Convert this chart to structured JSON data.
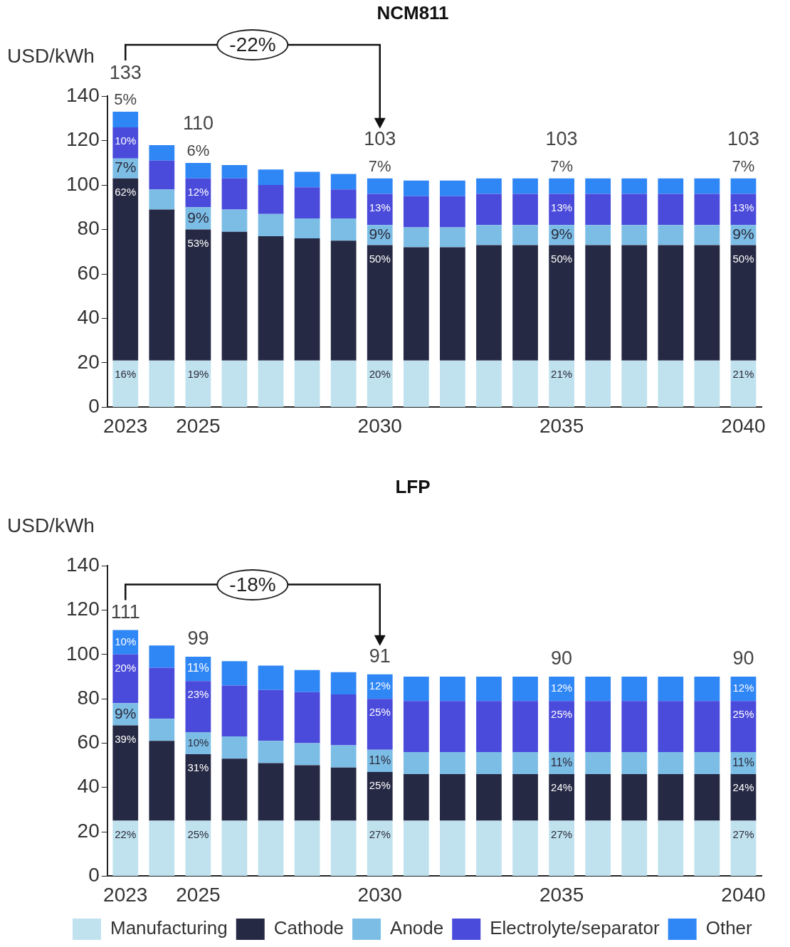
{
  "chart_data": [
    {
      "type": "bar",
      "title": "NCM811",
      "ylabel": "USD/kWh",
      "stacked": true,
      "grid": false,
      "categories": [
        "2023",
        null,
        "2025",
        null,
        null,
        null,
        null,
        "2030",
        null,
        null,
        null,
        null,
        "2035",
        null,
        null,
        null,
        null,
        "2040"
      ],
      "ylim": [
        0,
        140
      ],
      "yticks": [
        0,
        20,
        40,
        60,
        80,
        100,
        120,
        140
      ],
      "series": [
        {
          "color": "#c0e2ee",
          "values": [
            21,
            21,
            21,
            21,
            21,
            21,
            21,
            21,
            21,
            21,
            21,
            21,
            21,
            21,
            21,
            21,
            21,
            21
          ]
        },
        {
          "color": "#262944",
          "values": [
            82,
            68,
            59,
            58,
            56,
            55,
            54,
            52,
            51,
            51,
            52,
            52,
            52,
            52,
            52,
            52,
            52,
            52
          ]
        },
        {
          "color": "#7cbde6",
          "values": [
            9,
            9,
            10,
            10,
            10,
            9,
            10,
            9,
            9,
            9,
            9,
            9,
            9,
            9,
            9,
            9,
            9,
            9
          ]
        },
        {
          "color": "#4a4adb",
          "values": [
            14,
            13,
            13,
            14,
            13,
            14,
            13,
            14,
            14,
            14,
            14,
            14,
            14,
            14,
            14,
            14,
            14,
            14
          ]
        },
        {
          "color": "#2f86f5",
          "values": [
            7,
            7,
            7,
            6,
            7,
            7,
            7,
            7,
            7,
            7,
            7,
            7,
            7,
            7,
            7,
            7,
            7,
            7
          ]
        }
      ],
      "totals": [
        "133",
        null,
        "110",
        null,
        null,
        null,
        null,
        "103",
        null,
        null,
        null,
        null,
        "103",
        null,
        null,
        null,
        null,
        "103"
      ],
      "annotations": [
        "-22%",
        {
          "text": "16%",
          "x": "2023",
          "y": 21
        },
        {
          "text": "62%",
          "x": "2023",
          "y": 103
        },
        {
          "text": "7%",
          "x": "2023",
          "y": 112
        },
        {
          "text": "10%",
          "x": "2023",
          "y": 126
        },
        {
          "text": "5%",
          "x": "2023",
          "y": 133
        },
        {
          "text": "19%",
          "x": "2025",
          "y": 21
        },
        {
          "text": "53%",
          "x": "2025",
          "y": 80
        },
        {
          "text": "9%",
          "x": "2025",
          "y": 90
        },
        {
          "text": "12%",
          "x": "2025",
          "y": 103
        },
        {
          "text": "6%",
          "x": "2025",
          "y": 110
        },
        {
          "text": "20%",
          "x": "2030",
          "y": 21
        },
        {
          "text": "50%",
          "x": "2030",
          "y": 73
        },
        {
          "text": "9%",
          "x": "2030",
          "y": 82
        },
        {
          "text": "13%",
          "x": "2030",
          "y": 96
        },
        {
          "text": "7%",
          "x": "2030",
          "y": 103
        },
        {
          "text": "21%",
          "x": "2035",
          "y": 21
        },
        {
          "text": "50%",
          "x": "2035",
          "y": 73
        },
        {
          "text": "9%",
          "x": "2035",
          "y": 82
        },
        {
          "text": "13%",
          "x": "2035",
          "y": 96
        },
        {
          "text": "7%",
          "x": "2035",
          "y": 103
        },
        {
          "text": "21%",
          "x": "2040",
          "y": 21
        },
        {
          "text": "50%",
          "x": "2040",
          "y": 73
        },
        {
          "text": "9%",
          "x": "2040",
          "y": 82
        },
        {
          "text": "13%",
          "x": "2040",
          "y": 96
        },
        {
          "text": "7%",
          "x": "2040",
          "y": 103
        }
      ]
    },
    {
      "type": "bar",
      "title": "LFP",
      "ylabel": "USD/kWh",
      "stacked": true,
      "grid": false,
      "legend": "bottom",
      "categories": [
        "2023",
        null,
        "2025",
        null,
        null,
        null,
        null,
        "2030",
        null,
        null,
        null,
        null,
        "2035",
        null,
        null,
        null,
        null,
        "2040"
      ],
      "ylim": [
        0,
        140
      ],
      "yticks": [
        0,
        20,
        40,
        60,
        80,
        100,
        120,
        140
      ],
      "series": [
        {
          "name": "Manufacturing",
          "color": "#c0e2ee",
          "values": [
            25,
            25,
            25,
            25,
            25,
            25,
            25,
            25,
            25,
            25,
            25,
            25,
            25,
            25,
            25,
            25,
            25,
            25
          ]
        },
        {
          "name": "Cathode",
          "color": "#262944",
          "values": [
            43,
            36,
            30,
            28,
            26,
            25,
            24,
            22,
            21,
            21,
            21,
            21,
            21,
            21,
            21,
            21,
            21,
            21
          ]
        },
        {
          "name": "Anode",
          "color": "#7cbde6",
          "values": [
            10,
            10,
            10,
            10,
            10,
            10,
            10,
            10,
            10,
            10,
            10,
            10,
            10,
            10,
            10,
            10,
            10,
            10
          ]
        },
        {
          "name": "Electrolyte/separator",
          "color": "#4a4adb",
          "values": [
            22,
            23,
            23,
            23,
            23,
            23,
            23,
            23,
            23,
            23,
            23,
            23,
            23,
            23,
            23,
            23,
            23,
            23
          ]
        },
        {
          "name": "Other",
          "color": "#2f86f5",
          "values": [
            11,
            10,
            11,
            11,
            11,
            10,
            10,
            11,
            11,
            11,
            11,
            11,
            11,
            11,
            11,
            11,
            11,
            11
          ]
        }
      ],
      "totals": [
        "111",
        null,
        "99",
        null,
        null,
        null,
        null,
        "91",
        null,
        null,
        null,
        null,
        "90",
        null,
        null,
        null,
        null,
        "90"
      ],
      "annotations": [
        "-18%",
        {
          "text": "22%",
          "x": "2023",
          "y": 25
        },
        {
          "text": "39%",
          "x": "2023",
          "y": 68
        },
        {
          "text": "9%",
          "x": "2023",
          "y": 78
        },
        {
          "text": "20%",
          "x": "2023",
          "y": 100
        },
        {
          "text": "10%",
          "x": "2023",
          "y": 111
        },
        {
          "text": "25%",
          "x": "2025",
          "y": 25
        },
        {
          "text": "31%",
          "x": "2025",
          "y": 55
        },
        {
          "text": "10%",
          "x": "2025",
          "y": 65
        },
        {
          "text": "23%",
          "x": "2025",
          "y": 88
        },
        {
          "text": "11%",
          "x": "2025",
          "y": 99
        },
        {
          "text": "27%",
          "x": "2030",
          "y": 25
        },
        {
          "text": "25%",
          "x": "2030",
          "y": 47
        },
        {
          "text": "11%",
          "x": "2030",
          "y": 57
        },
        {
          "text": "25%",
          "x": "2030",
          "y": 80
        },
        {
          "text": "12%",
          "x": "2030",
          "y": 91
        },
        {
          "text": "27%",
          "x": "2035",
          "y": 25
        },
        {
          "text": "24%",
          "x": "2035",
          "y": 46
        },
        {
          "text": "11%",
          "x": "2035",
          "y": 56
        },
        {
          "text": "25%",
          "x": "2035",
          "y": 79
        },
        {
          "text": "12%",
          "x": "2035",
          "y": 90
        },
        {
          "text": "27%",
          "x": "2040",
          "y": 25
        },
        {
          "text": "24%",
          "x": "2040",
          "y": 46
        },
        {
          "text": "11%",
          "x": "2040",
          "y": 56
        },
        {
          "text": "25%",
          "x": "2040",
          "y": 79
        },
        {
          "text": "12%",
          "x": "2040",
          "y": 90
        }
      ]
    }
  ]
}
